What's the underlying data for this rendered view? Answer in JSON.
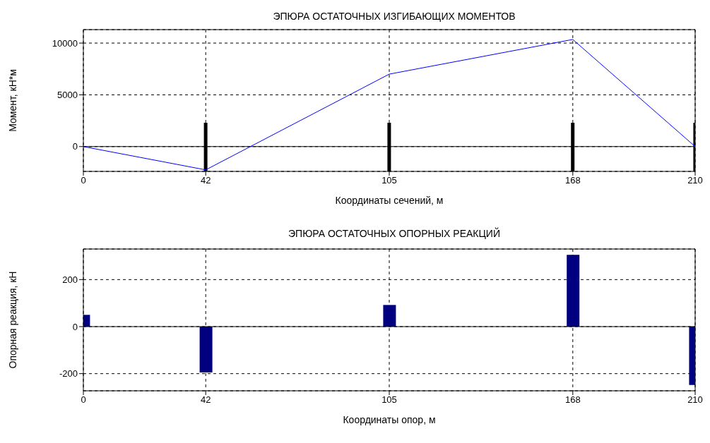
{
  "chart_data": [
    {
      "type": "line",
      "title": "ЭПЮРА ОСТАТОЧНЫХ ИЗГИБАЮЩИХ МОМЕНТОВ",
      "xlabel": "Координаты сечений, м",
      "ylabel": "Момент, кН*м",
      "x": [
        0,
        42,
        105,
        168,
        210
      ],
      "series": [
        {
          "color": "#0000ff",
          "values": [
            0,
            -2250,
            7000,
            10350,
            0
          ]
        },
        {
          "type": "bar",
          "color": "#000000",
          "values": [
            null,
            4700,
            4700,
            4700,
            4700
          ],
          "base": [
            null,
            -2400,
            -2400,
            -2400,
            -2400
          ]
        }
      ],
      "xlim": [
        0,
        210
      ],
      "xticks": [
        0,
        42,
        105,
        168,
        210
      ],
      "ylim": [
        -2400,
        11300
      ],
      "yticks": [
        0,
        5000,
        10000
      ],
      "grid": true,
      "ref_lines": [
        {
          "axis": "y",
          "value": 0,
          "color": "#000000",
          "line_style": "solid"
        }
      ]
    },
    {
      "type": "bar",
      "title": "ЭПЮРА ОСТАТОЧНЫХ ОПОРНЫХ РЕАКЦИЙ",
      "xlabel": "Координаты опор, м",
      "ylabel": "Опорная реакция, кН",
      "x": [
        0,
        42,
        105,
        168,
        210
      ],
      "series": [
        {
          "color": "#000080",
          "values": [
            50,
            -195,
            92,
            305,
            -248
          ]
        }
      ],
      "xlim": [
        0,
        210
      ],
      "xticks": [
        0,
        42,
        105,
        168,
        210
      ],
      "ylim": [
        -273,
        330
      ],
      "yticks": [
        -200,
        0,
        200
      ],
      "grid": true,
      "ref_lines": [
        {
          "axis": "y",
          "value": 0,
          "color": "#000000",
          "line_style": "solid"
        }
      ]
    }
  ]
}
